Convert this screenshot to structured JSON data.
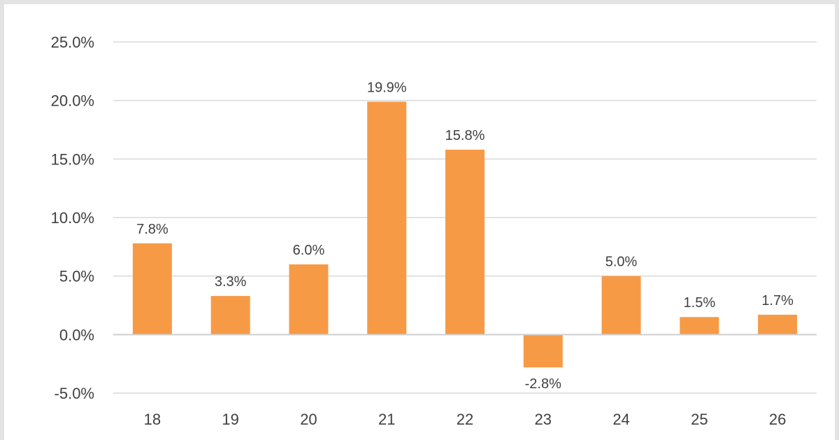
{
  "chart_data": {
    "type": "bar",
    "categories": [
      "18",
      "19",
      "20",
      "21",
      "22",
      "23",
      "24",
      "25",
      "26"
    ],
    "values": [
      7.8,
      3.3,
      6.0,
      19.9,
      15.8,
      -2.8,
      5.0,
      1.5,
      1.7
    ],
    "data_labels": [
      "7.8%",
      "3.3%",
      "6.0%",
      "19.9%",
      "15.8%",
      "-2.8%",
      "5.0%",
      "1.5%",
      "1.7%"
    ],
    "y_ticks": [
      {
        "value": 25,
        "label": "25.0%"
      },
      {
        "value": 20,
        "label": "20.0%"
      },
      {
        "value": 15,
        "label": "15.0%"
      },
      {
        "value": 10,
        "label": "10.0%"
      },
      {
        "value": 5,
        "label": "5.0%"
      },
      {
        "value": 0,
        "label": "0.0%"
      },
      {
        "value": -5,
        "label": "-5.0%"
      }
    ],
    "ylim": [
      -5,
      25
    ],
    "grid": true,
    "bar_color": "#f79a46",
    "title": "",
    "xlabel": "",
    "ylabel": ""
  }
}
